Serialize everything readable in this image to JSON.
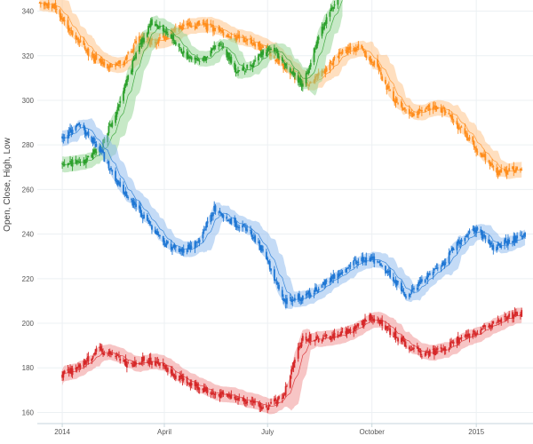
{
  "chart_data": {
    "type": "candlestick",
    "title": "",
    "xlabel": "",
    "ylabel": "Open, Close, High, Low",
    "ylim": [
      155,
      345
    ],
    "x_range": [
      "2013-12-10",
      "2015-02-20"
    ],
    "x_ticks": [
      {
        "date": "2014-01-01",
        "label": "2014"
      },
      {
        "date": "2014-04-01",
        "label": "April"
      },
      {
        "date": "2014-07-01",
        "label": "July"
      },
      {
        "date": "2014-10-01",
        "label": "October"
      },
      {
        "date": "2015-01-01",
        "label": "2015"
      }
    ],
    "y_ticks": [
      160,
      180,
      200,
      220,
      240,
      260,
      280,
      300,
      320,
      340
    ],
    "grid": true,
    "legend": "none",
    "series": [
      {
        "color": "#ff8c1a",
        "band_color": "#ffbf80",
        "anchors": [
          [
            "2013-12-12",
            344
          ],
          [
            "2013-12-25",
            342
          ],
          [
            "2014-01-10",
            330
          ],
          [
            "2014-01-25",
            320
          ],
          [
            "2014-02-10",
            315
          ],
          [
            "2014-02-25",
            318
          ],
          [
            "2014-03-10",
            328
          ],
          [
            "2014-03-25",
            326
          ],
          [
            "2014-04-10",
            331
          ],
          [
            "2014-04-25",
            334
          ],
          [
            "2014-05-10",
            333
          ],
          [
            "2014-05-25",
            330
          ],
          [
            "2014-06-10",
            327
          ],
          [
            "2014-06-25",
            324
          ],
          [
            "2014-07-10",
            318
          ],
          [
            "2014-07-25",
            310
          ],
          [
            "2014-08-05",
            307
          ],
          [
            "2014-08-20",
            313
          ],
          [
            "2014-09-05",
            322
          ],
          [
            "2014-09-20",
            324
          ],
          [
            "2014-10-05",
            315
          ],
          [
            "2014-10-20",
            300
          ],
          [
            "2014-11-05",
            293
          ],
          [
            "2014-11-20",
            297
          ],
          [
            "2014-12-05",
            295
          ],
          [
            "2014-12-20",
            286
          ],
          [
            "2015-01-05",
            276
          ],
          [
            "2015-01-20",
            268
          ],
          [
            "2015-02-10",
            270
          ]
        ]
      },
      {
        "color": "#2ca02c",
        "band_color": "#8fd48f",
        "anchors": [
          [
            "2014-01-01",
            272
          ],
          [
            "2014-01-20",
            272
          ],
          [
            "2014-02-05",
            280
          ],
          [
            "2014-02-20",
            298
          ],
          [
            "2014-03-05",
            318
          ],
          [
            "2014-03-20",
            335
          ],
          [
            "2014-04-05",
            330
          ],
          [
            "2014-04-20",
            320
          ],
          [
            "2014-05-05",
            318
          ],
          [
            "2014-05-20",
            326
          ],
          [
            "2014-06-05",
            312
          ],
          [
            "2014-06-20",
            318
          ],
          [
            "2014-07-05",
            324
          ],
          [
            "2014-07-20",
            314
          ],
          [
            "2014-08-01",
            307
          ],
          [
            "2014-08-15",
            328
          ],
          [
            "2014-08-25",
            340
          ],
          [
            "2014-09-05",
            350
          ]
        ]
      },
      {
        "color": "#1f77d4",
        "band_color": "#8ab8ee",
        "anchors": [
          [
            "2014-01-01",
            284
          ],
          [
            "2014-01-15",
            289
          ],
          [
            "2014-02-01",
            280
          ],
          [
            "2014-02-15",
            266
          ],
          [
            "2014-03-01",
            256
          ],
          [
            "2014-03-15",
            247
          ],
          [
            "2014-04-01",
            236
          ],
          [
            "2014-04-15",
            232
          ],
          [
            "2014-05-01",
            236
          ],
          [
            "2014-05-15",
            252
          ],
          [
            "2014-06-01",
            245
          ],
          [
            "2014-06-15",
            242
          ],
          [
            "2014-07-01",
            228
          ],
          [
            "2014-07-15",
            210
          ],
          [
            "2014-08-01",
            212
          ],
          [
            "2014-08-15",
            216
          ],
          [
            "2014-09-01",
            222
          ],
          [
            "2014-09-15",
            228
          ],
          [
            "2014-10-01",
            229
          ],
          [
            "2014-10-15",
            223
          ],
          [
            "2014-11-01",
            212
          ],
          [
            "2014-11-15",
            220
          ],
          [
            "2014-12-01",
            225
          ],
          [
            "2014-12-15",
            236
          ],
          [
            "2015-01-01",
            242
          ],
          [
            "2015-01-15",
            234
          ],
          [
            "2015-02-15",
            240
          ]
        ]
      },
      {
        "color": "#d62728",
        "band_color": "#f08c8c",
        "anchors": [
          [
            "2014-01-01",
            177
          ],
          [
            "2014-01-15",
            180
          ],
          [
            "2014-02-01",
            188
          ],
          [
            "2014-02-15",
            186
          ],
          [
            "2014-03-01",
            181
          ],
          [
            "2014-03-15",
            184
          ],
          [
            "2014-04-01",
            180
          ],
          [
            "2014-04-15",
            175
          ],
          [
            "2014-05-01",
            172
          ],
          [
            "2014-05-15",
            168
          ],
          [
            "2014-06-01",
            168
          ],
          [
            "2014-06-15",
            164
          ],
          [
            "2014-07-01",
            162
          ],
          [
            "2014-07-15",
            168
          ],
          [
            "2014-08-01",
            194
          ],
          [
            "2014-08-15",
            193
          ],
          [
            "2014-09-01",
            195
          ],
          [
            "2014-09-15",
            198
          ],
          [
            "2014-10-01",
            203
          ],
          [
            "2014-10-15",
            197
          ],
          [
            "2014-11-01",
            190
          ],
          [
            "2014-11-15",
            186
          ],
          [
            "2014-12-01",
            188
          ],
          [
            "2014-12-15",
            192
          ],
          [
            "2015-01-01",
            196
          ],
          [
            "2015-01-15",
            200
          ],
          [
            "2015-02-10",
            205
          ]
        ]
      }
    ]
  }
}
